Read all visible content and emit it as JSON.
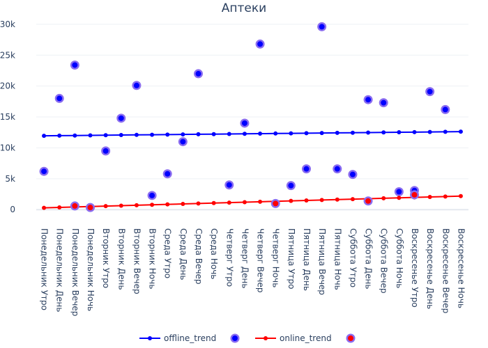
{
  "chart_data": {
    "type": "line",
    "title": "Аптеки",
    "xlabel": "",
    "ylabel": "",
    "ylim": [
      -2000,
      31000
    ],
    "yticks": [
      0,
      5000,
      10000,
      15000,
      20000,
      25000,
      30000
    ],
    "ytick_labels": [
      "0",
      "5k",
      "10k",
      "15k",
      "20k",
      "25k",
      "30k"
    ],
    "categories": [
      "Понедельник Утро",
      "Понедельник День",
      "Понедельник Вечер",
      "Понедельник Ночь",
      "Вторник Утро",
      "Вторник День",
      "Вторник Вечер",
      "Вторник Ночь",
      "Среда Утро",
      "Среда День",
      "Среда Вечер",
      "Среда Ночь",
      "Четверг Утро",
      "Четверг День",
      "Четверг Вечер",
      "Четверг Ночь",
      "Пятница Утро",
      "Пятница День",
      "Пятница Вечер",
      "Пятница Ночь",
      "Суббота Утро",
      "Суббота День",
      "Суббота Вечер",
      "Суббота Ночь",
      "Воскресенье Утро",
      "Воскресенье День",
      "Воскресенье Вечер",
      "Воскресенье Ночь"
    ],
    "series": [
      {
        "name": "offline_trend",
        "kind": "line",
        "color": "#0000ff",
        "values": [
          11950,
          11975,
          12000,
          12025,
          12050,
          12075,
          12100,
          12125,
          12150,
          12175,
          12200,
          12225,
          12250,
          12275,
          12300,
          12325,
          12350,
          12375,
          12400,
          12425,
          12450,
          12475,
          12500,
          12525,
          12550,
          12575,
          12600,
          12625
        ]
      },
      {
        "name": "",
        "kind": "scatter",
        "legend_after": "offline_trend",
        "color": "#0000ff",
        "halo": "#8a6cf0",
        "values": [
          6200,
          18000,
          23400,
          null,
          9500,
          14800,
          20100,
          2300,
          5800,
          11000,
          22000,
          null,
          4000,
          14000,
          26800,
          null,
          3900,
          6600,
          29600,
          6600,
          5700,
          17800,
          17300,
          2900,
          3100,
          19100,
          16200,
          null
        ]
      },
      {
        "name": "online_trend",
        "kind": "line",
        "color": "#ff0000",
        "values": [
          300,
          370,
          440,
          510,
          580,
          650,
          720,
          790,
          860,
          930,
          1000,
          1070,
          1140,
          1210,
          1280,
          1350,
          1420,
          1490,
          1560,
          1630,
          1700,
          1770,
          1840,
          1910,
          1980,
          2050,
          2120,
          2190
        ]
      },
      {
        "name": "",
        "kind": "scatter",
        "legend_after": "online_trend",
        "color": "#ff0000",
        "halo": "#8a6cf0",
        "values": [
          null,
          null,
          600,
          350,
          null,
          null,
          null,
          null,
          null,
          null,
          null,
          null,
          null,
          null,
          null,
          1000,
          null,
          null,
          null,
          null,
          null,
          1400,
          null,
          null,
          2400,
          null,
          null,
          null
        ]
      }
    ],
    "legend": {
      "placement": "bottom-center"
    }
  }
}
